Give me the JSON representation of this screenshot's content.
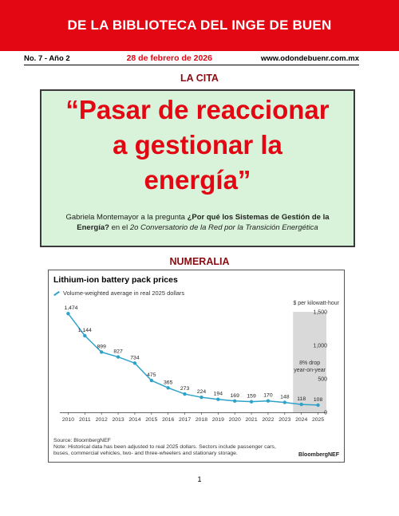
{
  "banner": {
    "title": "DE LA BIBLIOTECA DEL INGE DE BUEN"
  },
  "header": {
    "issue": "No. 7 - Año 2",
    "date": "28 de febrero de 2026",
    "website": "www.odondebuenr.com.mx"
  },
  "sections": {
    "quote_title": "LA CITA",
    "numeralia_title": "NUMERALIA"
  },
  "quote": {
    "line1": "“Pasar de reaccionar",
    "line2": "a gestionar la",
    "line3": "energía”",
    "attr_prefix": "Gabriela Montemayor a la pregunta ",
    "attr_question": "¿Por qué los Sistemas de Gestión de la Energía?",
    "attr_mid": " en el ",
    "attr_event": "2o Conversatorio de la Red por la Transición Energética"
  },
  "chart_data": {
    "type": "line",
    "title": "Lithium-ion battery pack prices",
    "legend": "Volume-weighted average in real 2025 dollars",
    "unit_label": "$ per kilowatt-hour",
    "x": [
      2010,
      2011,
      2012,
      2013,
      2014,
      2015,
      2016,
      2017,
      2018,
      2019,
      2020,
      2021,
      2022,
      2023,
      2024,
      2025
    ],
    "values": [
      1474,
      1144,
      899,
      827,
      734,
      475,
      365,
      273,
      224,
      194,
      169,
      159,
      170,
      148,
      118,
      108
    ],
    "value_labels": [
      "1,474",
      "1,144",
      "899",
      "827",
      "734",
      "475",
      "365",
      "273",
      "224",
      "194",
      "169",
      "159",
      "170",
      "148",
      "118",
      "108"
    ],
    "ylim": [
      0,
      1500
    ],
    "yticks": [
      0,
      500,
      1000,
      1500
    ],
    "ytick_labels": [
      "0",
      "500",
      "1,000",
      "1,500"
    ],
    "highlight_years": [
      2024,
      2025
    ],
    "annotation": [
      "8% drop",
      "year-on-year"
    ],
    "line_color": "#2ea3c9",
    "highlight_color": "#d9d9d9",
    "source": "Source: BloombergNEF",
    "note": "Note: Historical data has been adjusted to real 2025 dollars. Sectors include passenger cars, buses, commercial vehicles, two- and three-wheelers and stationary storage.",
    "brand": "BloombergNEF"
  },
  "footer": {
    "page_number": "1"
  }
}
